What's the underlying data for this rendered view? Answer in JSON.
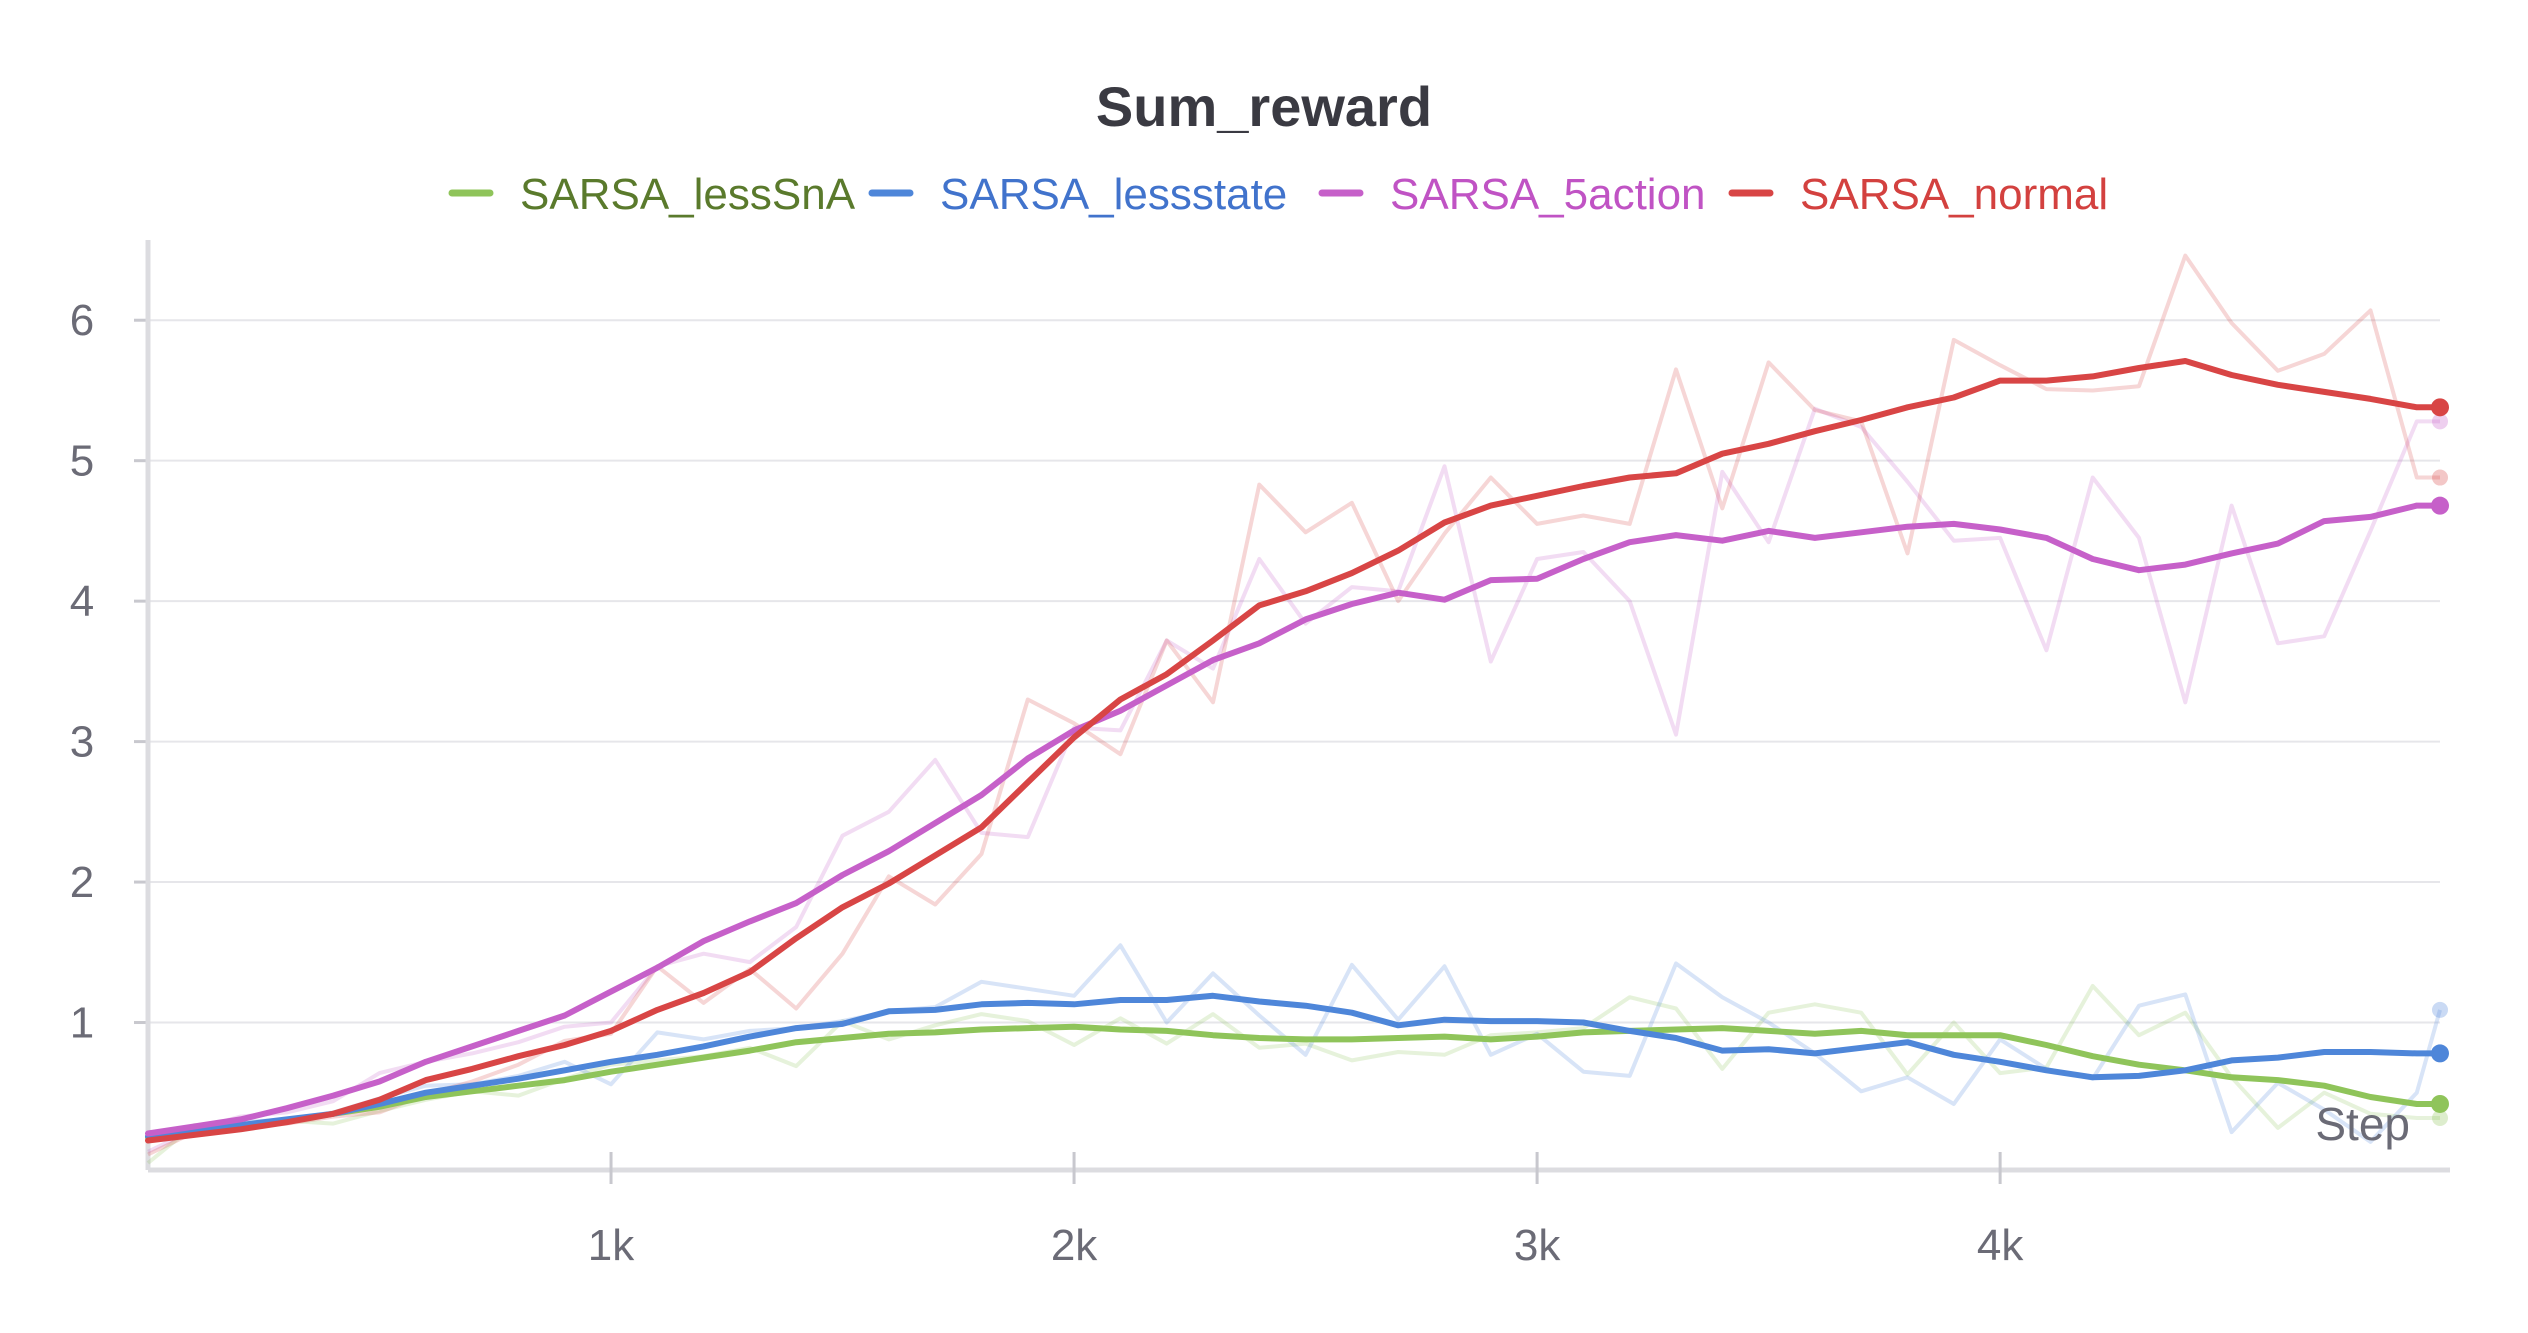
{
  "chart_data": {
    "type": "line",
    "title": "Sum_reward",
    "xlabel": "Step",
    "ylabel": "",
    "xlim": [
      0,
      4950
    ],
    "ylim": [
      -0.05,
      6.5
    ],
    "x_ticks": [
      1000,
      2000,
      3000,
      4000
    ],
    "x_tick_labels": [
      "1k",
      "2k",
      "3k",
      "4k"
    ],
    "y_ticks": [
      1,
      2,
      3,
      4,
      5,
      6
    ],
    "y_tick_labels": [
      "1",
      "2",
      "3",
      "4",
      "5",
      "6"
    ],
    "grid": true,
    "legend_position": "top-center",
    "x": [
      0,
      100,
      200,
      300,
      400,
      500,
      600,
      700,
      800,
      900,
      1000,
      1100,
      1200,
      1300,
      1400,
      1500,
      1600,
      1700,
      1800,
      1900,
      2000,
      2100,
      2200,
      2300,
      2400,
      2500,
      2600,
      2700,
      2800,
      2900,
      3000,
      3100,
      3200,
      3300,
      3400,
      3500,
      3600,
      3700,
      3800,
      3900,
      4000,
      4100,
      4200,
      4300,
      4400,
      4500,
      4600,
      4700,
      4800,
      4900,
      4950
    ],
    "series": [
      {
        "name": "SARSA_lessSnA",
        "color": "#8fc45a",
        "label_color": "#5a7a2c",
        "raw": [
          0.0,
          0.27,
          0.26,
          0.3,
          0.28,
          0.37,
          0.45,
          0.51,
          0.48,
          0.6,
          0.7,
          0.73,
          0.76,
          0.82,
          0.69,
          1.01,
          0.88,
          0.98,
          1.06,
          1.01,
          0.84,
          1.03,
          0.85,
          1.06,
          0.82,
          0.85,
          0.73,
          0.79,
          0.77,
          0.91,
          0.93,
          0.96,
          1.18,
          1.1,
          0.67,
          1.07,
          1.13,
          1.07,
          0.63,
          1.0,
          0.64,
          0.68,
          1.26,
          0.91,
          1.07,
          0.61,
          0.25,
          0.5,
          0.35,
          0.32,
          0.32
        ],
        "values": [
          0.18,
          0.22,
          0.25,
          0.3,
          0.35,
          0.4,
          0.47,
          0.51,
          0.55,
          0.59,
          0.65,
          0.7,
          0.75,
          0.8,
          0.86,
          0.89,
          0.92,
          0.93,
          0.95,
          0.96,
          0.97,
          0.95,
          0.94,
          0.91,
          0.89,
          0.88,
          0.88,
          0.89,
          0.9,
          0.88,
          0.9,
          0.93,
          0.94,
          0.95,
          0.96,
          0.94,
          0.92,
          0.94,
          0.91,
          0.91,
          0.91,
          0.84,
          0.76,
          0.7,
          0.66,
          0.61,
          0.59,
          0.55,
          0.47,
          0.42,
          0.42
        ]
      },
      {
        "name": "SARSA_lessstate",
        "color": "#4e86d9",
        "label_color": "#4173cc",
        "raw": [
          0.17,
          0.24,
          0.29,
          0.31,
          0.36,
          0.46,
          0.55,
          0.56,
          0.62,
          0.72,
          0.56,
          0.93,
          0.88,
          0.94,
          0.96,
          1.01,
          1.08,
          1.11,
          1.29,
          1.24,
          1.19,
          1.55,
          1.0,
          1.35,
          1.05,
          0.77,
          1.41,
          1.02,
          1.4,
          0.77,
          0.92,
          0.65,
          0.62,
          1.42,
          1.18,
          1.0,
          0.78,
          0.51,
          0.61,
          0.42,
          0.88,
          0.67,
          0.6,
          1.12,
          1.2,
          0.22,
          0.57,
          0.38,
          0.15,
          0.5,
          1.09
        ],
        "values": [
          0.19,
          0.23,
          0.27,
          0.31,
          0.35,
          0.42,
          0.5,
          0.55,
          0.6,
          0.66,
          0.72,
          0.77,
          0.83,
          0.9,
          0.96,
          0.99,
          1.08,
          1.09,
          1.13,
          1.14,
          1.13,
          1.16,
          1.16,
          1.19,
          1.15,
          1.12,
          1.07,
          0.98,
          1.02,
          1.01,
          1.01,
          1.0,
          0.94,
          0.89,
          0.8,
          0.81,
          0.78,
          0.82,
          0.86,
          0.77,
          0.72,
          0.66,
          0.61,
          0.62,
          0.66,
          0.73,
          0.75,
          0.79,
          0.79,
          0.78,
          0.78
        ]
      },
      {
        "name": "SARSA_5action",
        "color": "#c660c9",
        "label_color": "#c053c4",
        "raw": [
          0.08,
          0.24,
          0.33,
          0.36,
          0.44,
          0.64,
          0.72,
          0.78,
          0.86,
          0.97,
          1.0,
          1.4,
          1.49,
          1.43,
          1.68,
          2.33,
          2.5,
          2.87,
          2.35,
          2.32,
          3.1,
          3.08,
          3.72,
          3.52,
          4.3,
          3.84,
          4.1,
          4.07,
          4.96,
          3.57,
          4.3,
          4.35,
          4.0,
          3.05,
          4.92,
          4.42,
          5.37,
          5.24,
          4.85,
          4.43,
          4.45,
          3.65,
          4.88,
          4.45,
          3.28,
          4.68,
          3.7,
          3.75,
          4.5,
          5.28,
          5.28
        ],
        "values": [
          0.21,
          0.26,
          0.31,
          0.39,
          0.48,
          0.58,
          0.72,
          0.83,
          0.94,
          1.05,
          1.22,
          1.39,
          1.58,
          1.72,
          1.85,
          2.05,
          2.22,
          2.42,
          2.62,
          2.88,
          3.08,
          3.22,
          3.4,
          3.58,
          3.7,
          3.87,
          3.98,
          4.06,
          4.01,
          4.15,
          4.16,
          4.3,
          4.42,
          4.47,
          4.43,
          4.5,
          4.45,
          4.49,
          4.53,
          4.55,
          4.51,
          4.45,
          4.3,
          4.22,
          4.26,
          4.34,
          4.41,
          4.57,
          4.6,
          4.68,
          4.68
        ]
      },
      {
        "name": "SARSA_normal",
        "color": "#d84545",
        "label_color": "#d3413f",
        "raw": [
          0.06,
          0.22,
          0.25,
          0.28,
          0.33,
          0.36,
          0.49,
          0.58,
          0.7,
          0.87,
          0.92,
          1.4,
          1.14,
          1.38,
          1.1,
          1.49,
          2.04,
          1.84,
          2.2,
          3.3,
          3.13,
          2.91,
          3.72,
          3.28,
          4.83,
          4.49,
          4.7,
          4.0,
          4.48,
          4.88,
          4.55,
          4.61,
          4.55,
          5.65,
          4.66,
          5.7,
          5.36,
          5.28,
          4.34,
          5.86,
          5.68,
          5.51,
          5.5,
          5.53,
          6.46,
          5.98,
          5.64,
          5.76,
          6.07,
          4.88,
          4.88
        ],
        "values": [
          0.16,
          0.2,
          0.24,
          0.29,
          0.35,
          0.45,
          0.59,
          0.67,
          0.76,
          0.84,
          0.94,
          1.09,
          1.21,
          1.36,
          1.6,
          1.82,
          1.99,
          2.19,
          2.39,
          2.71,
          3.03,
          3.3,
          3.48,
          3.72,
          3.97,
          4.07,
          4.2,
          4.36,
          4.56,
          4.68,
          4.75,
          4.82,
          4.88,
          4.91,
          5.05,
          5.12,
          5.21,
          5.29,
          5.38,
          5.45,
          5.57,
          5.57,
          5.6,
          5.66,
          5.71,
          5.61,
          5.54,
          5.49,
          5.44,
          5.38,
          5.38
        ]
      }
    ]
  }
}
